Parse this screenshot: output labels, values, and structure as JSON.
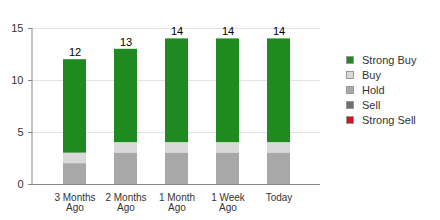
{
  "chart_data": {
    "type": "bar",
    "stacked": true,
    "categories": [
      "3 Months Ago",
      "2 Months Ago",
      "1 Month Ago",
      "1 Week Ago",
      "Today"
    ],
    "series": [
      {
        "name": "Strong Buy",
        "color": "#1f8a1f",
        "values": [
          9,
          9,
          10,
          10,
          10
        ]
      },
      {
        "name": "Buy",
        "color": "#d9d9d9",
        "values": [
          1,
          1,
          1,
          1,
          1
        ]
      },
      {
        "name": "Hold",
        "color": "#a8a8a8",
        "values": [
          2,
          3,
          3,
          3,
          3
        ]
      },
      {
        "name": "Sell",
        "color": "#707070",
        "values": [
          0,
          0,
          0,
          0,
          0
        ]
      },
      {
        "name": "Strong Sell",
        "color": "#d9141e",
        "values": [
          0,
          0,
          0,
          0,
          0
        ]
      }
    ],
    "totals": [
      12,
      13,
      14,
      14,
      14
    ],
    "ylim": [
      0,
      15
    ],
    "yticks": [
      0,
      5,
      10,
      15
    ],
    "grid": true,
    "legend": "right"
  }
}
